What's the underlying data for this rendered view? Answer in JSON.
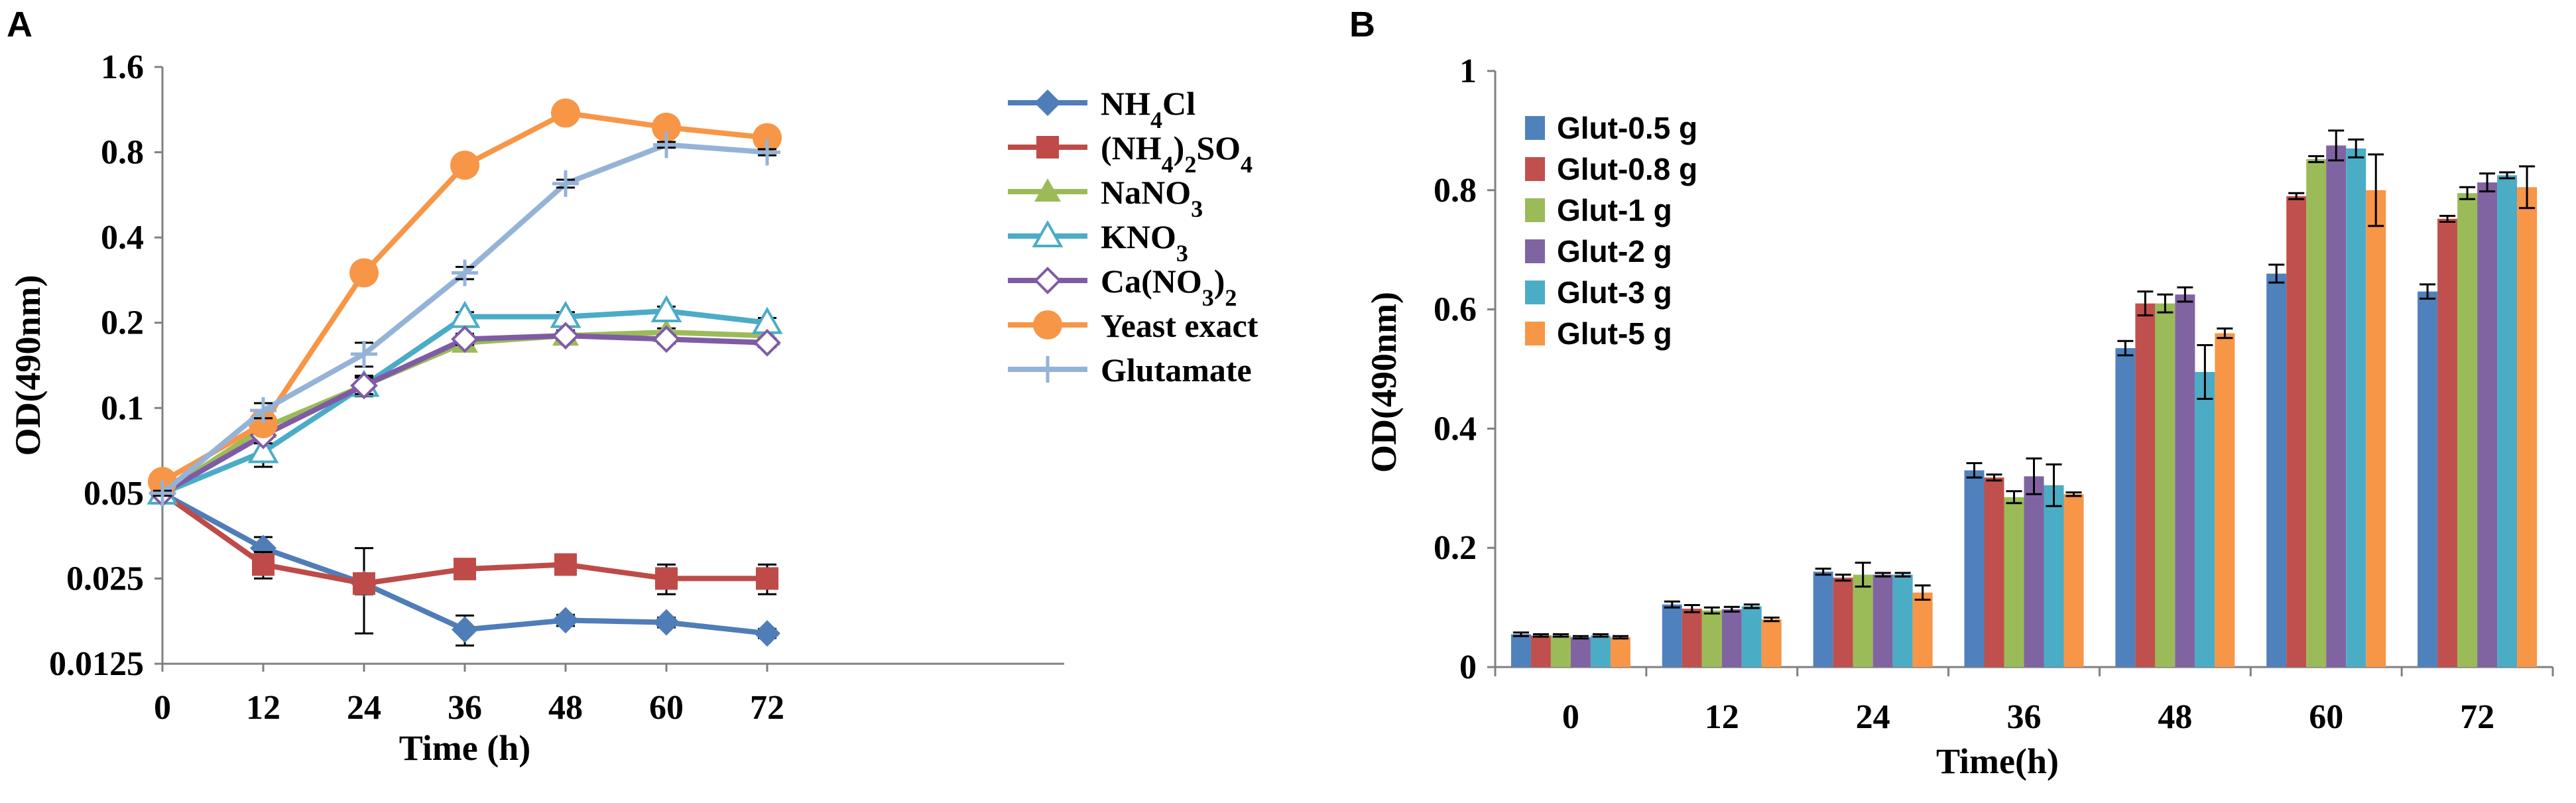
{
  "panel_a_label": "A",
  "panel_b_label": "B",
  "chart_data": [
    {
      "type": "line",
      "panel": "A",
      "xlabel": "Time (h)",
      "ylabel": "OD(490nm)",
      "yscale": "log2",
      "x": [
        0,
        12,
        24,
        36,
        48,
        60,
        72
      ],
      "ylim": [
        0.0125,
        1.6
      ],
      "yticks": [
        0.0125,
        0.025,
        0.05,
        0.1,
        0.2,
        0.4,
        0.8,
        1.6
      ],
      "ytick_labels": [
        "0.0125",
        "0.025",
        "0.05",
        "0.1",
        "0.2",
        "0.4",
        "0.8",
        "1.6"
      ],
      "xtick_labels": [
        "0",
        "12",
        "24",
        "36",
        "48",
        "60",
        "72"
      ],
      "series": [
        {
          "name": "NH4Cl",
          "legend": {
            "base": "NH",
            "sub": "4",
            "tail": "Cl"
          },
          "color": "#4F7DB8",
          "marker": "diamond",
          "values": [
            0.05,
            0.032,
            0.024,
            0.0165,
            0.0178,
            0.0175,
            0.016
          ],
          "errors": [
            0.001,
            0.003,
            0.008,
            0.002,
            0.0008,
            0.0007,
            0.0006
          ]
        },
        {
          "name": "(NH4)2SO4",
          "legend": {
            "base": "(NH",
            "sub": "4",
            "tail": ")",
            "sub2": "2",
            "tail2": "SO",
            "sub3": "4"
          },
          "color": "#BE4B48",
          "marker": "square",
          "values": [
            0.05,
            0.028,
            0.024,
            0.027,
            0.028,
            0.025,
            0.025
          ],
          "errors": [
            0.001,
            0.003,
            0.002,
            0.0015,
            0.002,
            0.003,
            0.003
          ]
        },
        {
          "name": "NaNO3",
          "legend": {
            "base": "NaNO",
            "sub": "3"
          },
          "color": "#9BBB59",
          "marker": "triangle",
          "values": [
            0.05,
            0.085,
            0.12,
            0.17,
            0.18,
            0.185,
            0.18
          ],
          "errors": [
            0.001,
            0.005,
            0.008,
            0.008,
            0.008,
            0.006,
            0.006
          ]
        },
        {
          "name": "KNO3",
          "legend": {
            "base": "KNO",
            "sub": "3"
          },
          "color": "#4BACC6",
          "marker": "triangle-open",
          "values": [
            0.05,
            0.07,
            0.12,
            0.21,
            0.21,
            0.22,
            0.2
          ],
          "errors": [
            0.001,
            0.008,
            0.01,
            0.008,
            0.008,
            0.008,
            0.008
          ]
        },
        {
          "name": "Ca(NO3)2",
          "legend": {
            "base": "Ca(NO",
            "sub": "3",
            "tail": ")",
            "sub2": "2"
          },
          "color": "#7F5BA6",
          "marker": "diamond-open",
          "values": [
            0.05,
            0.08,
            0.12,
            0.175,
            0.18,
            0.175,
            0.17
          ],
          "errors": [
            0.001,
            0.005,
            0.008,
            0.008,
            0.006,
            0.006,
            0.006
          ]
        },
        {
          "name": "Yeast exact",
          "legend": {
            "base": "Yeast exact"
          },
          "color": "#F79646",
          "marker": "circle",
          "values": [
            0.055,
            0.088,
            0.3,
            0.72,
            1.1,
            0.98,
            0.9
          ],
          "errors": [
            0.001,
            0.004,
            0.01,
            0.02,
            0.02,
            0.02,
            0.02
          ]
        },
        {
          "name": "Glutamate",
          "legend": {
            "base": "Glutamate"
          },
          "color": "#95B3D7",
          "marker": "plus",
          "values": [
            0.05,
            0.098,
            0.155,
            0.3,
            0.62,
            0.85,
            0.8
          ],
          "errors": [
            0.001,
            0.006,
            0.015,
            0.015,
            0.02,
            0.02,
            0.02
          ]
        }
      ]
    },
    {
      "type": "bar",
      "panel": "B",
      "xlabel": "Time(h)",
      "ylabel": "OD(490nm)",
      "categories": [
        "0",
        "12",
        "24",
        "36",
        "48",
        "60",
        "72"
      ],
      "ylim": [
        0,
        1
      ],
      "yticks": [
        0,
        0.2,
        0.4,
        0.6,
        0.8,
        1
      ],
      "ytick_labels": [
        "0",
        "0.2",
        "0.4",
        "0.6",
        "0.8",
        "1"
      ],
      "series": [
        {
          "name": "Glut-0.5 g",
          "color": "#4F81BD",
          "values": [
            0.055,
            0.105,
            0.16,
            0.33,
            0.535,
            0.66,
            0.63
          ],
          "errors": [
            0.003,
            0.005,
            0.005,
            0.012,
            0.012,
            0.015,
            0.012
          ]
        },
        {
          "name": "Glut-0.8 g",
          "color": "#C0504D",
          "values": [
            0.053,
            0.098,
            0.15,
            0.318,
            0.61,
            0.79,
            0.752
          ],
          "errors": [
            0.002,
            0.006,
            0.005,
            0.005,
            0.02,
            0.005,
            0.005
          ]
        },
        {
          "name": "Glut-1 g",
          "color": "#9BBB59",
          "values": [
            0.053,
            0.095,
            0.155,
            0.285,
            0.61,
            0.852,
            0.795
          ],
          "errors": [
            0.002,
            0.005,
            0.02,
            0.01,
            0.015,
            0.005,
            0.01
          ]
        },
        {
          "name": "Glut-2 g",
          "color": "#8064A2",
          "values": [
            0.05,
            0.097,
            0.155,
            0.32,
            0.625,
            0.875,
            0.813
          ],
          "errors": [
            0.002,
            0.004,
            0.003,
            0.03,
            0.012,
            0.025,
            0.015
          ]
        },
        {
          "name": "Glut-3 g",
          "color": "#4BACC6",
          "values": [
            0.053,
            0.102,
            0.155,
            0.305,
            0.495,
            0.87,
            0.825
          ],
          "errors": [
            0.002,
            0.003,
            0.003,
            0.035,
            0.045,
            0.015,
            0.005
          ]
        },
        {
          "name": "Glut-5 g",
          "color": "#F79646",
          "values": [
            0.05,
            0.08,
            0.125,
            0.29,
            0.56,
            0.8,
            0.805
          ],
          "errors": [
            0.002,
            0.003,
            0.012,
            0.003,
            0.008,
            0.06,
            0.035
          ]
        }
      ]
    }
  ]
}
